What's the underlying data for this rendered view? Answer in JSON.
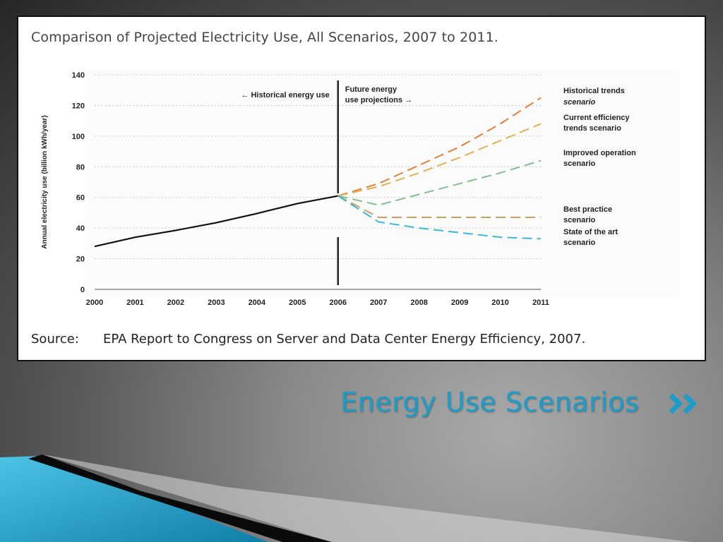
{
  "slide": {
    "title": "Energy Use Scenarios",
    "accent_color": "#1a9dc8",
    "next_icon": "double-chevron-right-icon"
  },
  "figure": {
    "source_label": "Source:",
    "source_text": "EPA Report to Congress on Server and Data Center Energy Efficiency, 2007."
  },
  "chart_data": {
    "type": "line",
    "title": "Comparison of Projected Electricity Use, All Scenarios, 2007 to 2011.",
    "xlabel": "",
    "ylabel": "Annual electricity use (billion kWh/year)",
    "xlim": [
      2000,
      2011
    ],
    "ylim": [
      0,
      140
    ],
    "yticks": [
      0,
      20,
      40,
      60,
      80,
      100,
      120,
      140
    ],
    "xticks": [
      "2000",
      "2001",
      "2002",
      "2003",
      "2004",
      "2005",
      "2006",
      "2007",
      "2008",
      "2009",
      "2010",
      "2011"
    ],
    "grid": "horizontal dotted",
    "divider_year": 2006,
    "annotations": {
      "historical": "← Historical energy use",
      "future_line1": "Future energy",
      "future_line2": "use projections →"
    },
    "series": [
      {
        "name": "Historical",
        "color": "#111111",
        "dash": false,
        "x": [
          2000,
          2001,
          2002,
          2003,
          2004,
          2005,
          2006
        ],
        "y": [
          28,
          34,
          38.5,
          43.5,
          49.5,
          56,
          61
        ]
      },
      {
        "name_line1": "Historical trends",
        "name_line2": "scenario",
        "color": "#e0803a",
        "dash": true,
        "x": [
          2006,
          2007,
          2008,
          2009,
          2010,
          2011
        ],
        "y": [
          61,
          69,
          81,
          93,
          108,
          125
        ]
      },
      {
        "name_line1": "Current efficiency",
        "name_line2": "trends scenario",
        "color": "#e0b050",
        "dash": true,
        "x": [
          2006,
          2007,
          2008,
          2009,
          2010,
          2011
        ],
        "y": [
          61,
          67,
          76,
          86,
          97,
          108
        ]
      },
      {
        "name_line1": "Improved operation",
        "name_line2": "scenario",
        "color": "#7fbf8f",
        "dash": true,
        "x": [
          2006,
          2007,
          2008,
          2009,
          2010,
          2011
        ],
        "y": [
          61,
          55,
          62,
          69,
          76,
          84
        ]
      },
      {
        "name_line1": "Best practice",
        "name_line2": "scenario",
        "color": "#c8a060",
        "dash": true,
        "x": [
          2006,
          2007,
          2008,
          2009,
          2010,
          2011
        ],
        "y": [
          61,
          47,
          47,
          47,
          47,
          47
        ]
      },
      {
        "name_line1": "State of the art",
        "name_line2": "scenario",
        "color": "#3ab8d8",
        "dash": true,
        "x": [
          2006,
          2007,
          2008,
          2009,
          2010,
          2011
        ],
        "y": [
          61,
          44,
          40,
          37,
          34,
          33
        ]
      }
    ]
  }
}
